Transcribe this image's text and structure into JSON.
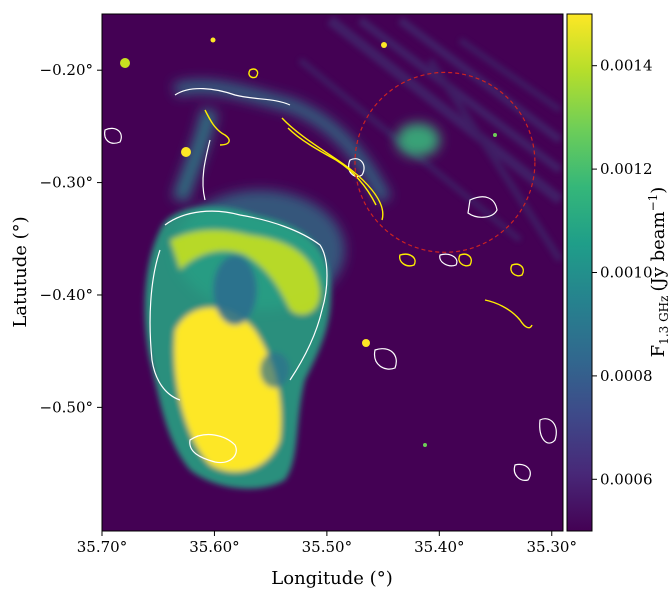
{
  "chart_data": {
    "type": "heatmap",
    "xlabel": "Longitude (°)",
    "ylabel": "Latutude (°)",
    "x_ticks": [
      {
        "value": 35.7,
        "label": "35.70°"
      },
      {
        "value": 35.6,
        "label": "35.60°"
      },
      {
        "value": 35.5,
        "label": "35.50°"
      },
      {
        "value": 35.4,
        "label": "35.40°"
      },
      {
        "value": 35.3,
        "label": "35.30°"
      }
    ],
    "y_ticks": [
      {
        "value": -0.2,
        "label": "−0.20°"
      },
      {
        "value": -0.3,
        "label": "−0.30°"
      },
      {
        "value": -0.4,
        "label": "−0.40°"
      },
      {
        "value": -0.5,
        "label": "−0.50°"
      }
    ],
    "xlim": [
      35.7,
      35.29
    ],
    "ylim": [
      -0.61,
      -0.15
    ],
    "colorbar": {
      "label_main": "F",
      "label_sub": "1.3 GHz",
      "label_unit": "(Jy beam",
      "label_exp": "−1",
      "label_close": ")",
      "range": [
        0.0005,
        0.0015
      ],
      "ticks": [
        {
          "value": 0.0006,
          "label": "0.0006"
        },
        {
          "value": 0.0008,
          "label": "0.0008"
        },
        {
          "value": 0.001,
          "label": "0.0010"
        },
        {
          "value": 0.0012,
          "label": "0.0012"
        },
        {
          "value": 0.0014,
          "label": "0.0014"
        }
      ],
      "colors": [
        "#440154",
        "#482878",
        "#3e4989",
        "#31688e",
        "#26828e",
        "#1f9e89",
        "#35b779",
        "#6ece58",
        "#b5de2b",
        "#fde725"
      ]
    },
    "circle": {
      "center_lon": 35.395,
      "center_lat": -0.282,
      "radius_deg": 0.08,
      "color": "#cc2222"
    },
    "background_color": "#440154",
    "contour_colors": {
      "white": "#ffffff",
      "yellow": "#ffee00"
    }
  }
}
